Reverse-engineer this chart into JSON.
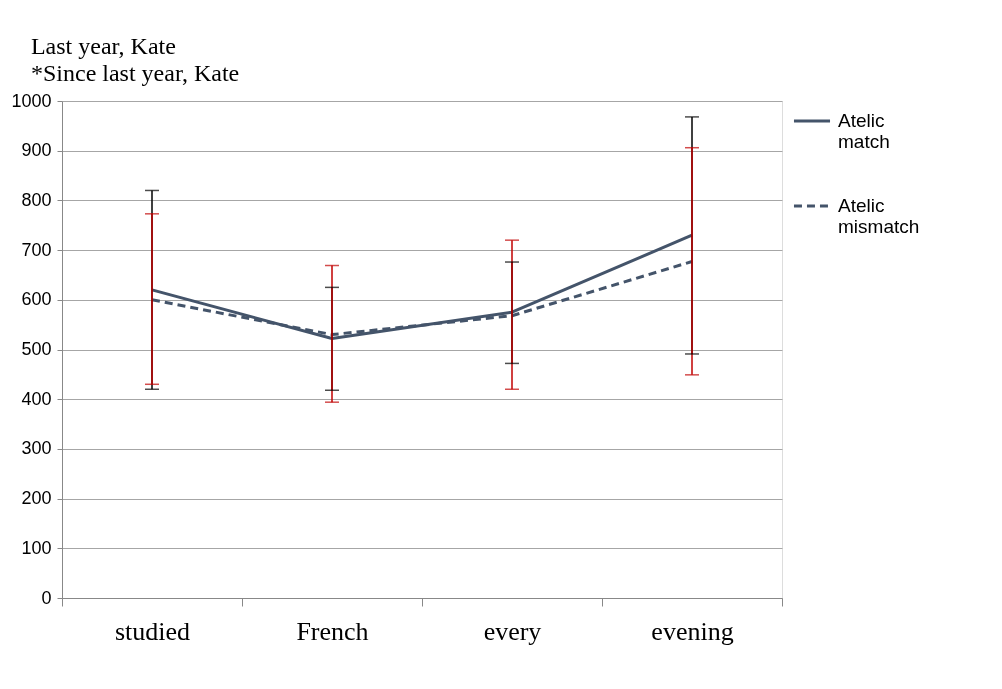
{
  "chart_data": {
    "type": "line",
    "title": "Last year, Kate",
    "subtitle": "*Since last year, Kate",
    "categories": [
      "studied",
      "French",
      "every",
      "evening"
    ],
    "series": [
      {
        "name": "Atelic match",
        "color": "#44546a",
        "line_style": "solid",
        "values": [
          620,
          522,
          575,
          730
        ],
        "errors": [
          [
            420,
            820
          ],
          [
            418,
            625
          ],
          [
            472,
            676
          ],
          [
            491,
            968
          ]
        ]
      },
      {
        "name": "Atelic mismatch",
        "color": "#44546a",
        "line_style": "dashed",
        "values": [
          600,
          530,
          568,
          677
        ],
        "errors": [
          [
            430,
            773
          ],
          [
            394,
            669
          ],
          [
            420,
            720
          ],
          [
            449,
            906
          ]
        ]
      }
    ],
    "ylim": [
      0,
      1000
    ],
    "yticks": [
      0,
      100,
      200,
      300,
      400,
      500,
      600,
      700,
      800,
      900,
      1000
    ],
    "grid": "y",
    "legend": "right",
    "marker": "none"
  }
}
